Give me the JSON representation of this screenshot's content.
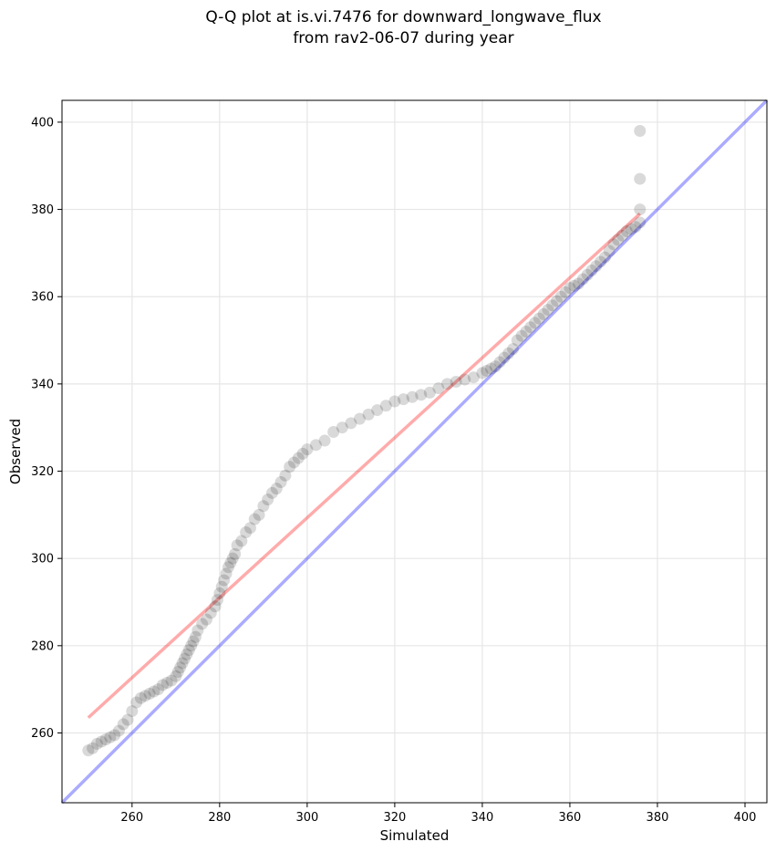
{
  "chart_data": {
    "type": "scatter",
    "title_lines": [
      "Q-Q plot at is.vi.7476 for downward_longwave_flux",
      "from rav2-06-07 during year"
    ],
    "xlabel": "Simulated",
    "ylabel": "Observed",
    "xlim": [
      244,
      405
    ],
    "ylim": [
      244,
      405
    ],
    "xticks": [
      260,
      280,
      300,
      320,
      340,
      360,
      380,
      400
    ],
    "yticks": [
      260,
      280,
      300,
      320,
      340,
      360,
      380,
      400
    ],
    "grid": true,
    "colors": {
      "points": "#000000",
      "identity_line": "#0000ff",
      "fit_line": "#ff0000",
      "grid": "#e6e6e6"
    },
    "lines": [
      {
        "name": "1:1 line",
        "x": [
          244,
          405
        ],
        "y": [
          244,
          405
        ]
      },
      {
        "name": "fit",
        "x": [
          250,
          376
        ],
        "y": [
          263.5,
          379
        ]
      }
    ],
    "points": [
      [
        250,
        256
      ],
      [
        251,
        256.5
      ],
      [
        252,
        257.5
      ],
      [
        253,
        258
      ],
      [
        254,
        258.5
      ],
      [
        255,
        259
      ],
      [
        256,
        259.5
      ],
      [
        257,
        260.5
      ],
      [
        258,
        262
      ],
      [
        259,
        263
      ],
      [
        260,
        265
      ],
      [
        261,
        267
      ],
      [
        262,
        268
      ],
      [
        263,
        268.5
      ],
      [
        264,
        269
      ],
      [
        265,
        269.5
      ],
      [
        266,
        270
      ],
      [
        267,
        271
      ],
      [
        268,
        271.5
      ],
      [
        269,
        272
      ],
      [
        270,
        273
      ],
      [
        270.5,
        274
      ],
      [
        271,
        275
      ],
      [
        271.5,
        276
      ],
      [
        272,
        277
      ],
      [
        272.5,
        278
      ],
      [
        273,
        279
      ],
      [
        273.5,
        280
      ],
      [
        274,
        281
      ],
      [
        274.5,
        282
      ],
      [
        275,
        283.5
      ],
      [
        276,
        285
      ],
      [
        277,
        286
      ],
      [
        278,
        287.5
      ],
      [
        279,
        289
      ],
      [
        279.5,
        290.5
      ],
      [
        280,
        292
      ],
      [
        280.5,
        293.5
      ],
      [
        281,
        295
      ],
      [
        281.5,
        296.5
      ],
      [
        282,
        298
      ],
      [
        282.5,
        299
      ],
      [
        283,
        300
      ],
      [
        283.5,
        301
      ],
      [
        284,
        303
      ],
      [
        285,
        304
      ],
      [
        286,
        306
      ],
      [
        287,
        307
      ],
      [
        288,
        309
      ],
      [
        289,
        310
      ],
      [
        290,
        312
      ],
      [
        291,
        313.5
      ],
      [
        292,
        315
      ],
      [
        293,
        316
      ],
      [
        294,
        317.5
      ],
      [
        295,
        319
      ],
      [
        296,
        321
      ],
      [
        297,
        322
      ],
      [
        298,
        323
      ],
      [
        299,
        324
      ],
      [
        300,
        325
      ],
      [
        302,
        326
      ],
      [
        304,
        327
      ],
      [
        306,
        329
      ],
      [
        308,
        330
      ],
      [
        310,
        331
      ],
      [
        312,
        332
      ],
      [
        314,
        333
      ],
      [
        316,
        334
      ],
      [
        318,
        335
      ],
      [
        320,
        336
      ],
      [
        322,
        336.5
      ],
      [
        324,
        337
      ],
      [
        326,
        337.5
      ],
      [
        328,
        338
      ],
      [
        330,
        339
      ],
      [
        332,
        340
      ],
      [
        334,
        340.5
      ],
      [
        336,
        341
      ],
      [
        338,
        341.5
      ],
      [
        340,
        342.5
      ],
      [
        341,
        343
      ],
      [
        342,
        343.5
      ],
      [
        343,
        344
      ],
      [
        344,
        345
      ],
      [
        345,
        346
      ],
      [
        346,
        347
      ],
      [
        347,
        348
      ],
      [
        348,
        350
      ],
      [
        349,
        351
      ],
      [
        350,
        352
      ],
      [
        351,
        353
      ],
      [
        352,
        354
      ],
      [
        353,
        355
      ],
      [
        354,
        356
      ],
      [
        355,
        357
      ],
      [
        356,
        358
      ],
      [
        357,
        359
      ],
      [
        358,
        360
      ],
      [
        359,
        361
      ],
      [
        360,
        362
      ],
      [
        361,
        362.5
      ],
      [
        362,
        363
      ],
      [
        363,
        364
      ],
      [
        364,
        365
      ],
      [
        365,
        366
      ],
      [
        366,
        367
      ],
      [
        367,
        368
      ],
      [
        368,
        369
      ],
      [
        369,
        370.5
      ],
      [
        370,
        372
      ],
      [
        371,
        373
      ],
      [
        372,
        374
      ],
      [
        373,
        375
      ],
      [
        374,
        375.5
      ],
      [
        375,
        376
      ],
      [
        376,
        377
      ],
      [
        376,
        380
      ],
      [
        376,
        387
      ],
      [
        376,
        398
      ]
    ]
  }
}
